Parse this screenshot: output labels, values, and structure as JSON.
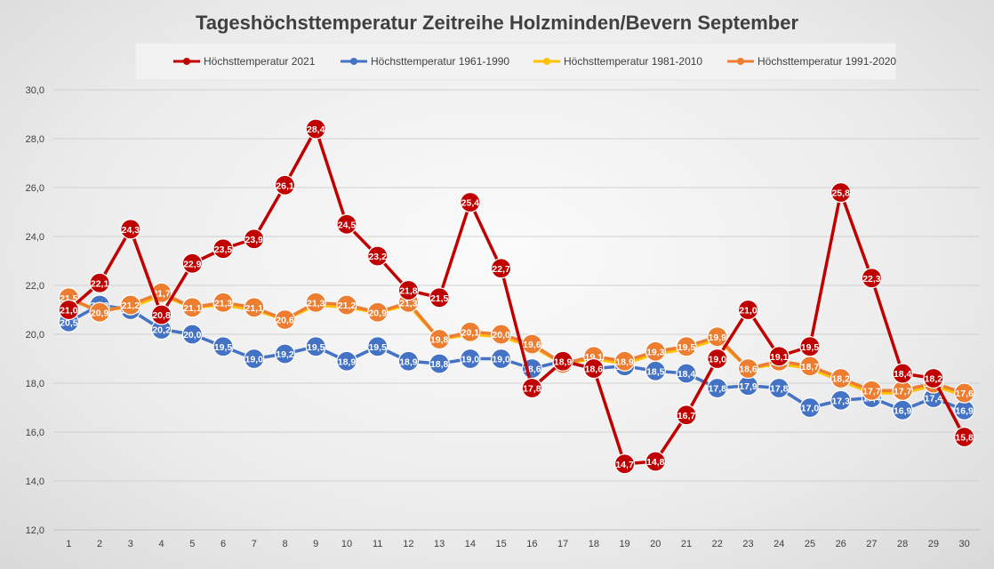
{
  "chart_data": {
    "type": "line",
    "title": "Tageshöchsttemperatur Zeitreihe Holzminden/Bevern September",
    "xlabel": "",
    "ylabel": "",
    "ylim": [
      12,
      30
    ],
    "y_ticks": [
      "12,0",
      "14,0",
      "16,0",
      "18,0",
      "20,0",
      "22,0",
      "24,0",
      "26,0",
      "28,0",
      "30,0"
    ],
    "categories": [
      "1",
      "2",
      "3",
      "4",
      "5",
      "6",
      "7",
      "8",
      "9",
      "10",
      "11",
      "12",
      "13",
      "14",
      "15",
      "16",
      "17",
      "18",
      "19",
      "20",
      "21",
      "22",
      "23",
      "24",
      "25",
      "26",
      "27",
      "28",
      "29",
      "30"
    ],
    "legend_position": "top",
    "grid": true,
    "series": [
      {
        "name": "Höchsttemperatur 2021",
        "color": "#c00000",
        "values": [
          21.0,
          22.1,
          24.3,
          20.8,
          22.9,
          23.5,
          23.9,
          26.1,
          28.4,
          24.5,
          23.2,
          21.8,
          21.5,
          25.4,
          22.7,
          17.8,
          18.9,
          18.6,
          14.7,
          14.8,
          16.7,
          19.0,
          21.0,
          19.1,
          19.5,
          25.8,
          22.3,
          18.4,
          18.2,
          15.8
        ]
      },
      {
        "name": "Höchsttemperatur 1961-1990",
        "color": "#4472c4",
        "values": [
          20.5,
          21.2,
          21.0,
          20.2,
          20.0,
          19.5,
          19.0,
          19.2,
          19.5,
          18.9,
          19.5,
          18.9,
          18.8,
          19.0,
          19.0,
          18.6,
          18.9,
          18.6,
          18.7,
          18.5,
          18.4,
          17.8,
          17.9,
          17.8,
          17.0,
          17.3,
          17.4,
          16.9,
          17.4,
          16.9
        ]
      },
      {
        "name": "Höchsttemperatur 1981-2010",
        "color": "#ffc000",
        "values": [
          21.4,
          21.0,
          21.1,
          21.6,
          21.1,
          21.2,
          21.0,
          20.6,
          21.2,
          21.1,
          20.9,
          21.2,
          19.8,
          20.0,
          19.9,
          19.5,
          18.8,
          19.0,
          18.8,
          19.2,
          19.4,
          19.8,
          18.6,
          18.8,
          18.6,
          18.1,
          17.6,
          17.6,
          17.9,
          17.5
        ]
      },
      {
        "name": "Höchsttemperatur 1991-2020",
        "color": "#ed7d31",
        "values": [
          21.5,
          20.9,
          21.2,
          21.7,
          21.1,
          21.3,
          21.1,
          20.6,
          21.3,
          21.2,
          20.9,
          21.3,
          19.8,
          20.1,
          20.0,
          19.6,
          18.8,
          19.1,
          18.9,
          19.3,
          19.5,
          19.9,
          18.6,
          18.9,
          18.7,
          18.2,
          17.7,
          17.7,
          18.0,
          17.6
        ]
      }
    ]
  }
}
